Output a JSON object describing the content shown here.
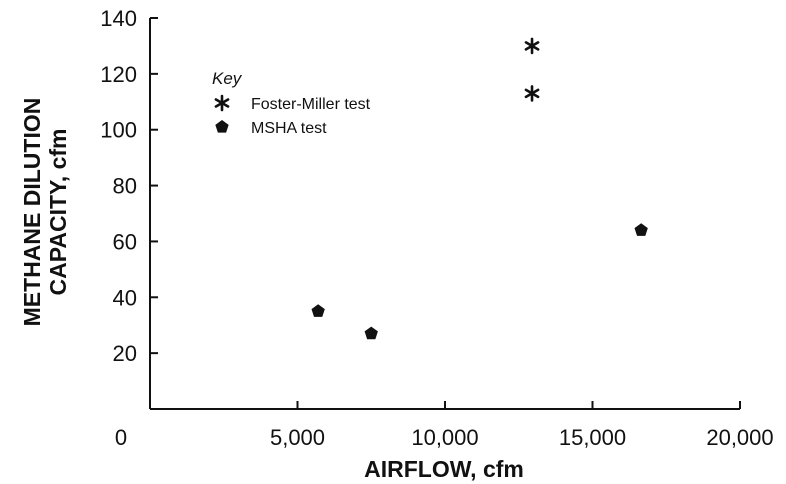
{
  "chart_data": {
    "type": "scatter",
    "xlabel": "AIRFLOW, cfm",
    "ylabel_line1": "METHANE DILUTION",
    "ylabel_line2": "CAPACITY, cfm",
    "xlim": [
      0,
      20000
    ],
    "ylim": [
      0,
      140
    ],
    "x_ticks": [
      {
        "value": 0,
        "label": "0"
      },
      {
        "value": 5000,
        "label": "5,000"
      },
      {
        "value": 10000,
        "label": "10,000"
      },
      {
        "value": 15000,
        "label": "15,000"
      },
      {
        "value": 20000,
        "label": "20,000"
      }
    ],
    "y_ticks": [
      {
        "value": 20,
        "label": "20"
      },
      {
        "value": 40,
        "label": "40"
      },
      {
        "value": 60,
        "label": "60"
      },
      {
        "value": 80,
        "label": "80"
      },
      {
        "value": 100,
        "label": "100"
      },
      {
        "value": 120,
        "label": "120"
      },
      {
        "value": 140,
        "label": "140"
      }
    ],
    "grid": false,
    "legend": {
      "title": "Key",
      "placement": "top-left",
      "entries": [
        {
          "label": "Foster-Miller test",
          "marker": "asterisk"
        },
        {
          "label": "MSHA test",
          "marker": "pentagon"
        }
      ]
    },
    "series": [
      {
        "name": "Foster-Miller test",
        "marker": "asterisk",
        "points": [
          {
            "x": 12950,
            "y": 130
          },
          {
            "x": 12950,
            "y": 113
          }
        ]
      },
      {
        "name": "MSHA test",
        "marker": "pentagon",
        "points": [
          {
            "x": 5700,
            "y": 35
          },
          {
            "x": 7500,
            "y": 27
          },
          {
            "x": 16650,
            "y": 64
          }
        ]
      }
    ]
  }
}
